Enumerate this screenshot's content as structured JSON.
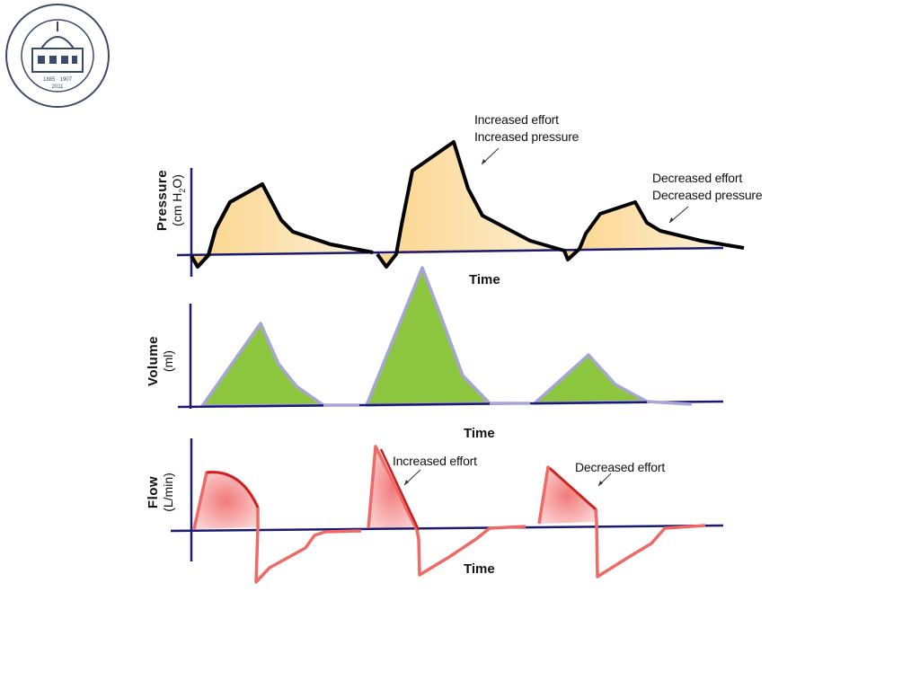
{
  "logo": {
    "text": "Северо-Западный государственный медицинский университет имени И.И. Мечникова",
    "years": "1885 1907 2011"
  },
  "panels": [
    {
      "ylabel": "Pressure",
      "yunit_pre": "(cm H",
      "yunit_sub": "2",
      "yunit_post": "O)",
      "xlabel": "Time",
      "fill_color": "#fbd991",
      "line_color": "#000000"
    },
    {
      "ylabel": "Volume",
      "yunit": "(ml)",
      "xlabel": "Time",
      "fill_color": "#8cc63f",
      "line_color": "#a7a5d6"
    },
    {
      "ylabel": "Flow",
      "yunit": "(L/min)",
      "xlabel": "Time",
      "fill_color": "#f6a3a3",
      "line_color": "#e8534f"
    }
  ],
  "annotations": {
    "pressure_increased": [
      "Increased effort",
      "Increased pressure"
    ],
    "pressure_decreased": [
      "Decreased effort",
      "Decreased pressure"
    ],
    "flow_increased": "Increased effort",
    "flow_decreased": "Decreased effort"
  },
  "axis_color": "#1a1a6e"
}
